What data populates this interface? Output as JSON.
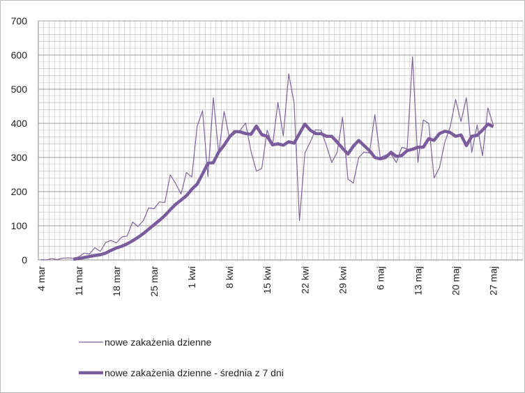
{
  "chart_data": {
    "type": "line",
    "categories": [
      "4 mar",
      null,
      null,
      null,
      null,
      null,
      null,
      "11 mar",
      null,
      null,
      null,
      null,
      null,
      null,
      "18 mar",
      null,
      null,
      null,
      null,
      null,
      null,
      "25 mar",
      null,
      null,
      null,
      null,
      null,
      null,
      "1 kwi",
      null,
      null,
      null,
      null,
      null,
      null,
      "8 kwi",
      null,
      null,
      null,
      null,
      null,
      null,
      "15 kwi",
      null,
      null,
      null,
      null,
      null,
      null,
      "22 kwi",
      null,
      null,
      null,
      null,
      null,
      null,
      "29 kwi",
      null,
      null,
      null,
      null,
      null,
      null,
      "6 maj",
      null,
      null,
      null,
      null,
      null,
      null,
      "13 maj",
      null,
      null,
      null,
      null,
      null,
      null,
      "20 maj",
      null,
      null,
      null,
      null,
      null,
      null,
      "27 maj",
      null,
      null,
      null,
      null,
      null
    ],
    "series": [
      {
        "name": "nowe zakażenia dzienne",
        "color": "#7b639e",
        "width": 1.2,
        "values": [
          1,
          0,
          4,
          1,
          5,
          6,
          5,
          9,
          20,
          17,
          36,
          25,
          51,
          57,
          50,
          67,
          70,
          111,
          98,
          115,
          152,
          150,
          170,
          168,
          249,
          224,
          193,
          256,
          243,
          392,
          437,
          244,
          475,
          311,
          435,
          357,
          370,
          380,
          401,
          318,
          260,
          268,
          380,
          336,
          461,
          363,
          545,
          460,
          115,
          313,
          345,
          381,
          380,
          335,
          285,
          315,
          418,
          237,
          225,
          300,
          316,
          313,
          425,
          300,
          307,
          310,
          285,
          330,
          325,
          595,
          285,
          410,
          400,
          240,
          270,
          345,
          390,
          470,
          405,
          475,
          315,
          395,
          305,
          445,
          395,
          null,
          null,
          null,
          null,
          null
        ]
      },
      {
        "name": "nowe zakażenia dzienne - średnia z 7 dni",
        "color": "#7a5c9c",
        "width": 4.5,
        "values": [
          null,
          null,
          null,
          null,
          null,
          null,
          2,
          4,
          7,
          10,
          13,
          15,
          20,
          28,
          35,
          40,
          47,
          56,
          66,
          77,
          90,
          103,
          116,
          130,
          147,
          163,
          175,
          188,
          207,
          222,
          252,
          283,
          285,
          316,
          336,
          360,
          376,
          375,
          370,
          368,
          392,
          367,
          362,
          337,
          340,
          336,
          346,
          342,
          370,
          398,
          380,
          370,
          370,
          362,
          362,
          345,
          327,
          310,
          333,
          350,
          335,
          320,
          300,
          296,
          300,
          315,
          303,
          306,
          320,
          324,
          330,
          330,
          355,
          350,
          370,
          377,
          373,
          362,
          366,
          335,
          362,
          365,
          380,
          398,
          390,
          null,
          null,
          null,
          null,
          null
        ]
      }
    ],
    "ylim": [
      0,
      700
    ],
    "yticks": [
      0,
      100,
      200,
      300,
      400,
      500,
      600,
      700
    ],
    "grid": true
  }
}
